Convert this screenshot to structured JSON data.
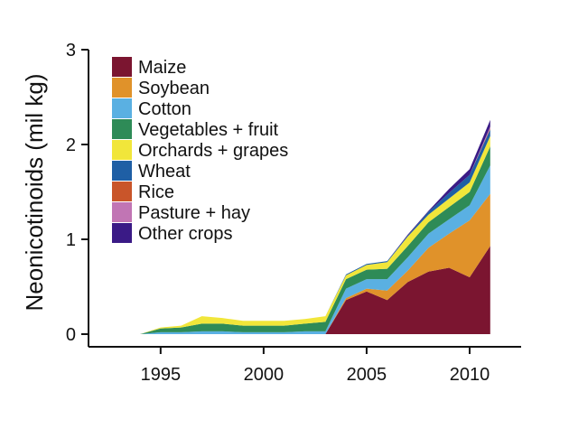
{
  "chart_data": {
    "type": "area",
    "stacked": true,
    "ylabel": "Neonicotinoids (mil kg)",
    "xlabel": "",
    "xlim": [
      1991.5,
      2012.5
    ],
    "ylim": [
      0,
      3
    ],
    "x_ticks": [
      1995,
      2000,
      2005,
      2010
    ],
    "y_ticks": [
      0,
      1,
      2,
      3
    ],
    "grid": false,
    "legend_position": "top-left",
    "x": [
      1993,
      1994,
      1995,
      1996,
      1997,
      1998,
      1999,
      2000,
      2001,
      2002,
      2003,
      2004,
      2005,
      2006,
      2007,
      2008,
      2009,
      2010,
      2011
    ],
    "series": [
      {
        "name": "Maize",
        "color": "#7b1530",
        "values": [
          0,
          0,
          0,
          0,
          0,
          0,
          0,
          0,
          0,
          0,
          0,
          0.36,
          0.45,
          0.36,
          0.55,
          0.66,
          0.7,
          0.6,
          0.93
        ]
      },
      {
        "name": "Soybean",
        "color": "#e0922a",
        "values": [
          0,
          0,
          0,
          0,
          0,
          0,
          0,
          0,
          0,
          0,
          0,
          0.02,
          0.03,
          0.1,
          0.12,
          0.25,
          0.36,
          0.6,
          0.55
        ]
      },
      {
        "name": "Cotton",
        "color": "#5ab0e2",
        "values": [
          0,
          0,
          0.02,
          0.02,
          0.03,
          0.03,
          0.02,
          0.02,
          0.02,
          0.03,
          0.03,
          0.1,
          0.1,
          0.12,
          0.14,
          0.15,
          0.15,
          0.16,
          0.3
        ]
      },
      {
        "name": "Vegetables + fruit",
        "color": "#2e8b57",
        "values": [
          0,
          0,
          0.04,
          0.05,
          0.08,
          0.08,
          0.07,
          0.07,
          0.07,
          0.08,
          0.1,
          0.1,
          0.1,
          0.11,
          0.12,
          0.12,
          0.13,
          0.14,
          0.2
        ]
      },
      {
        "name": "Orchards + grapes",
        "color": "#f1e63a",
        "values": [
          0,
          0,
          0.01,
          0.02,
          0.08,
          0.06,
          0.05,
          0.05,
          0.05,
          0.05,
          0.06,
          0.04,
          0.05,
          0.07,
          0.1,
          0.08,
          0.09,
          0.1,
          0.11
        ]
      },
      {
        "name": "Wheat",
        "color": "#1f5fa5",
        "values": [
          0,
          0,
          0,
          0,
          0,
          0,
          0,
          0,
          0,
          0,
          0,
          0.01,
          0.01,
          0.01,
          0.01,
          0.03,
          0.06,
          0.08,
          0.07
        ]
      },
      {
        "name": "Rice",
        "color": "#c9552a",
        "values": [
          0,
          0,
          0,
          0,
          0,
          0,
          0,
          0,
          0,
          0,
          0,
          0,
          0,
          0,
          0,
          0,
          0,
          0,
          0.01
        ]
      },
      {
        "name": "Pasture + hay",
        "color": "#c175b4",
        "values": [
          0,
          0,
          0,
          0,
          0,
          0,
          0,
          0,
          0,
          0,
          0,
          0,
          0,
          0,
          0,
          0,
          0,
          0,
          0.02
        ]
      },
      {
        "name": "Other crops",
        "color": "#3a1a86",
        "values": [
          0,
          0,
          0,
          0,
          0,
          0,
          0,
          0,
          0,
          0,
          0,
          0,
          0,
          0,
          0.01,
          0.01,
          0.04,
          0.06,
          0.07
        ]
      }
    ]
  }
}
